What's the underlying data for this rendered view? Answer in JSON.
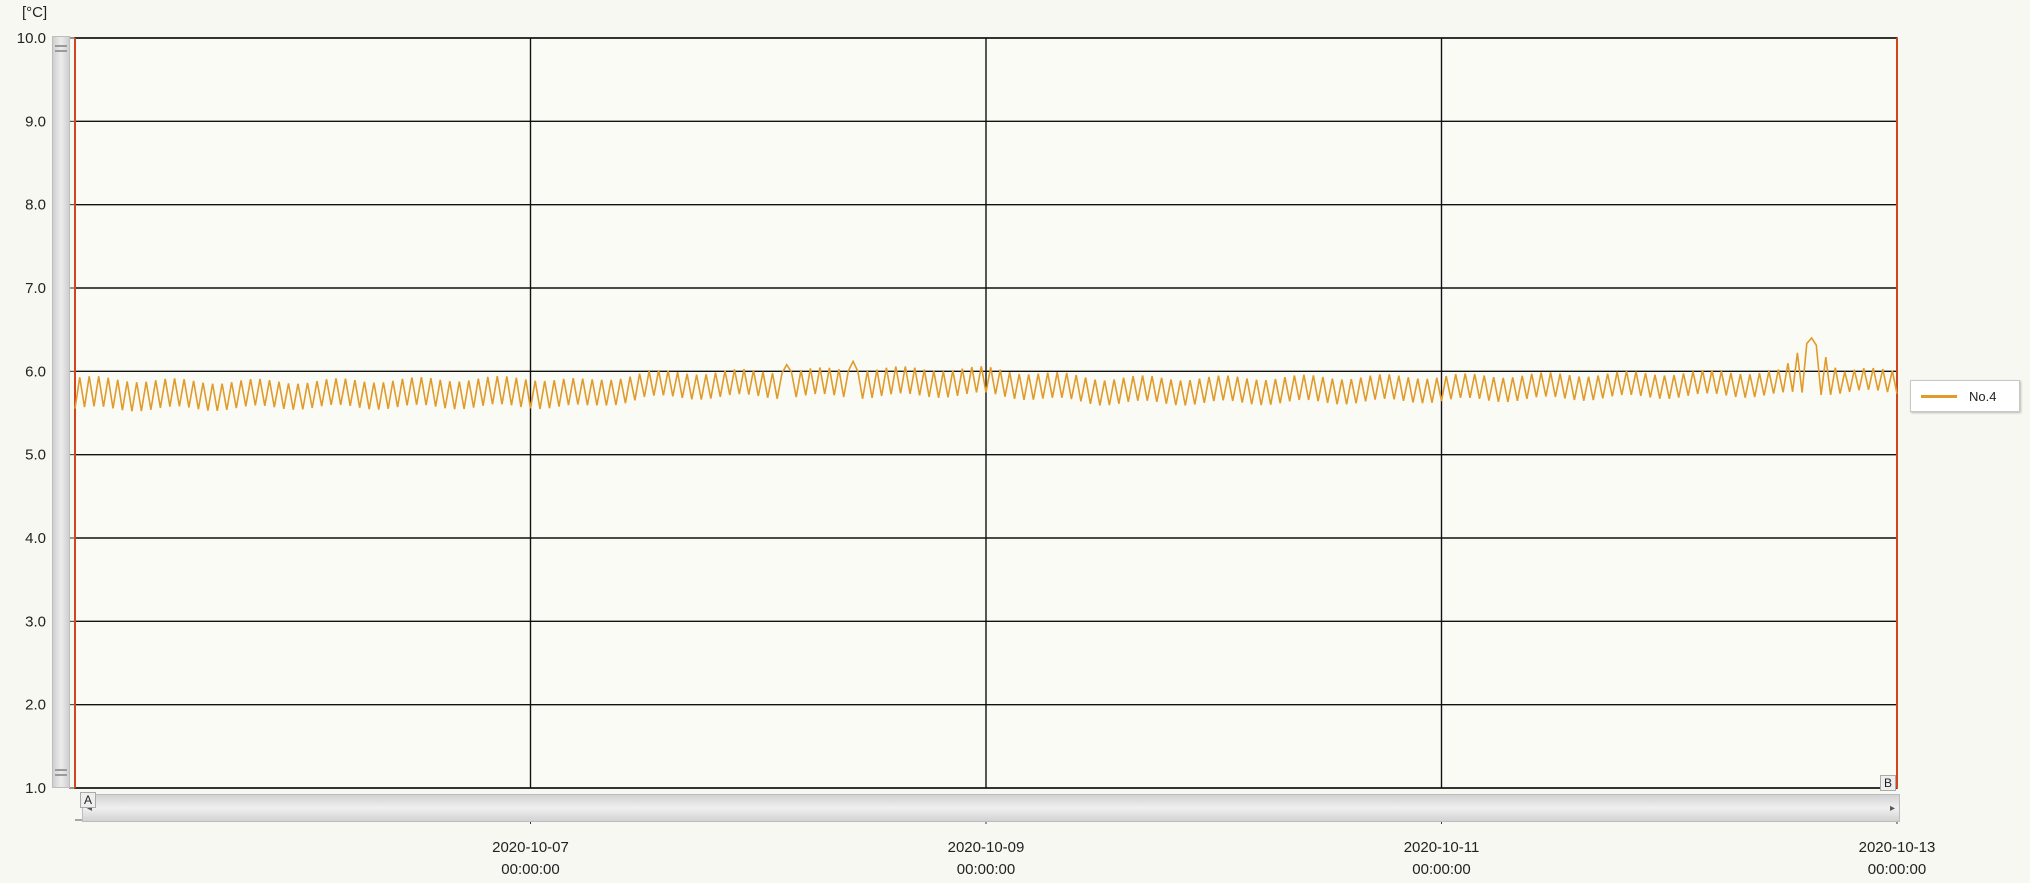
{
  "unit_label": "[°C]",
  "markers": {
    "left": "A",
    "right": "B"
  },
  "chart_data": {
    "type": "line",
    "title": "",
    "xlabel": "",
    "ylabel": "",
    "x_range": [
      "2020-10-05 00:00:00",
      "2020-10-13 00:00:00"
    ],
    "ylim": [
      1.0,
      10.0
    ],
    "yticks": [
      "1.0",
      "2.0",
      "3.0",
      "4.0",
      "5.0",
      "6.0",
      "7.0",
      "8.0",
      "9.0",
      "10.0"
    ],
    "xticks": [
      {
        "date": "2020-10-07",
        "time": "00:00:00"
      },
      {
        "date": "2020-10-09",
        "time": "00:00:00"
      },
      {
        "date": "2020-10-11",
        "time": "00:00:00"
      },
      {
        "date": "2020-10-13",
        "time": "00:00:00"
      }
    ],
    "grid": true,
    "legend_position": "right",
    "series": [
      {
        "name": "No.4",
        "color": "#e09b2a",
        "sampling": "hourly oscillation between low and high values",
        "x": [
          "2020-10-05 00:00",
          "2020-10-05 12:00",
          "2020-10-06 00:00",
          "2020-10-06 12:00",
          "2020-10-07 00:00",
          "2020-10-07 06:00",
          "2020-10-07 12:00",
          "2020-10-08 00:00",
          "2020-10-08 12:00",
          "2020-10-09 00:00",
          "2020-10-09 12:00",
          "2020-10-10 00:00",
          "2020-10-10 12:00",
          "2020-10-11 00:00",
          "2020-10-11 12:00",
          "2020-10-12 00:00",
          "2020-10-12 12:00",
          "2020-10-12 15:00",
          "2020-10-12 18:00",
          "2020-10-13 00:00"
        ],
        "low": [
          5.55,
          5.55,
          5.57,
          5.57,
          5.58,
          5.57,
          5.68,
          5.7,
          5.7,
          5.72,
          5.62,
          5.62,
          5.63,
          5.65,
          5.67,
          5.7,
          5.72,
          5.74,
          5.75,
          5.75
        ],
        "high": [
          5.92,
          5.88,
          5.88,
          5.9,
          5.92,
          5.88,
          5.98,
          6.0,
          6.03,
          6.03,
          5.92,
          5.92,
          5.93,
          5.94,
          5.96,
          5.98,
          6.0,
          6.4,
          6.0,
          6.02
        ],
        "spikes": [
          {
            "x": "2020-10-08 03:00",
            "y": 6.08
          },
          {
            "x": "2020-10-08 10:00",
            "y": 6.12
          },
          {
            "x": "2020-10-12 15:00",
            "y": 6.4
          }
        ]
      }
    ]
  }
}
